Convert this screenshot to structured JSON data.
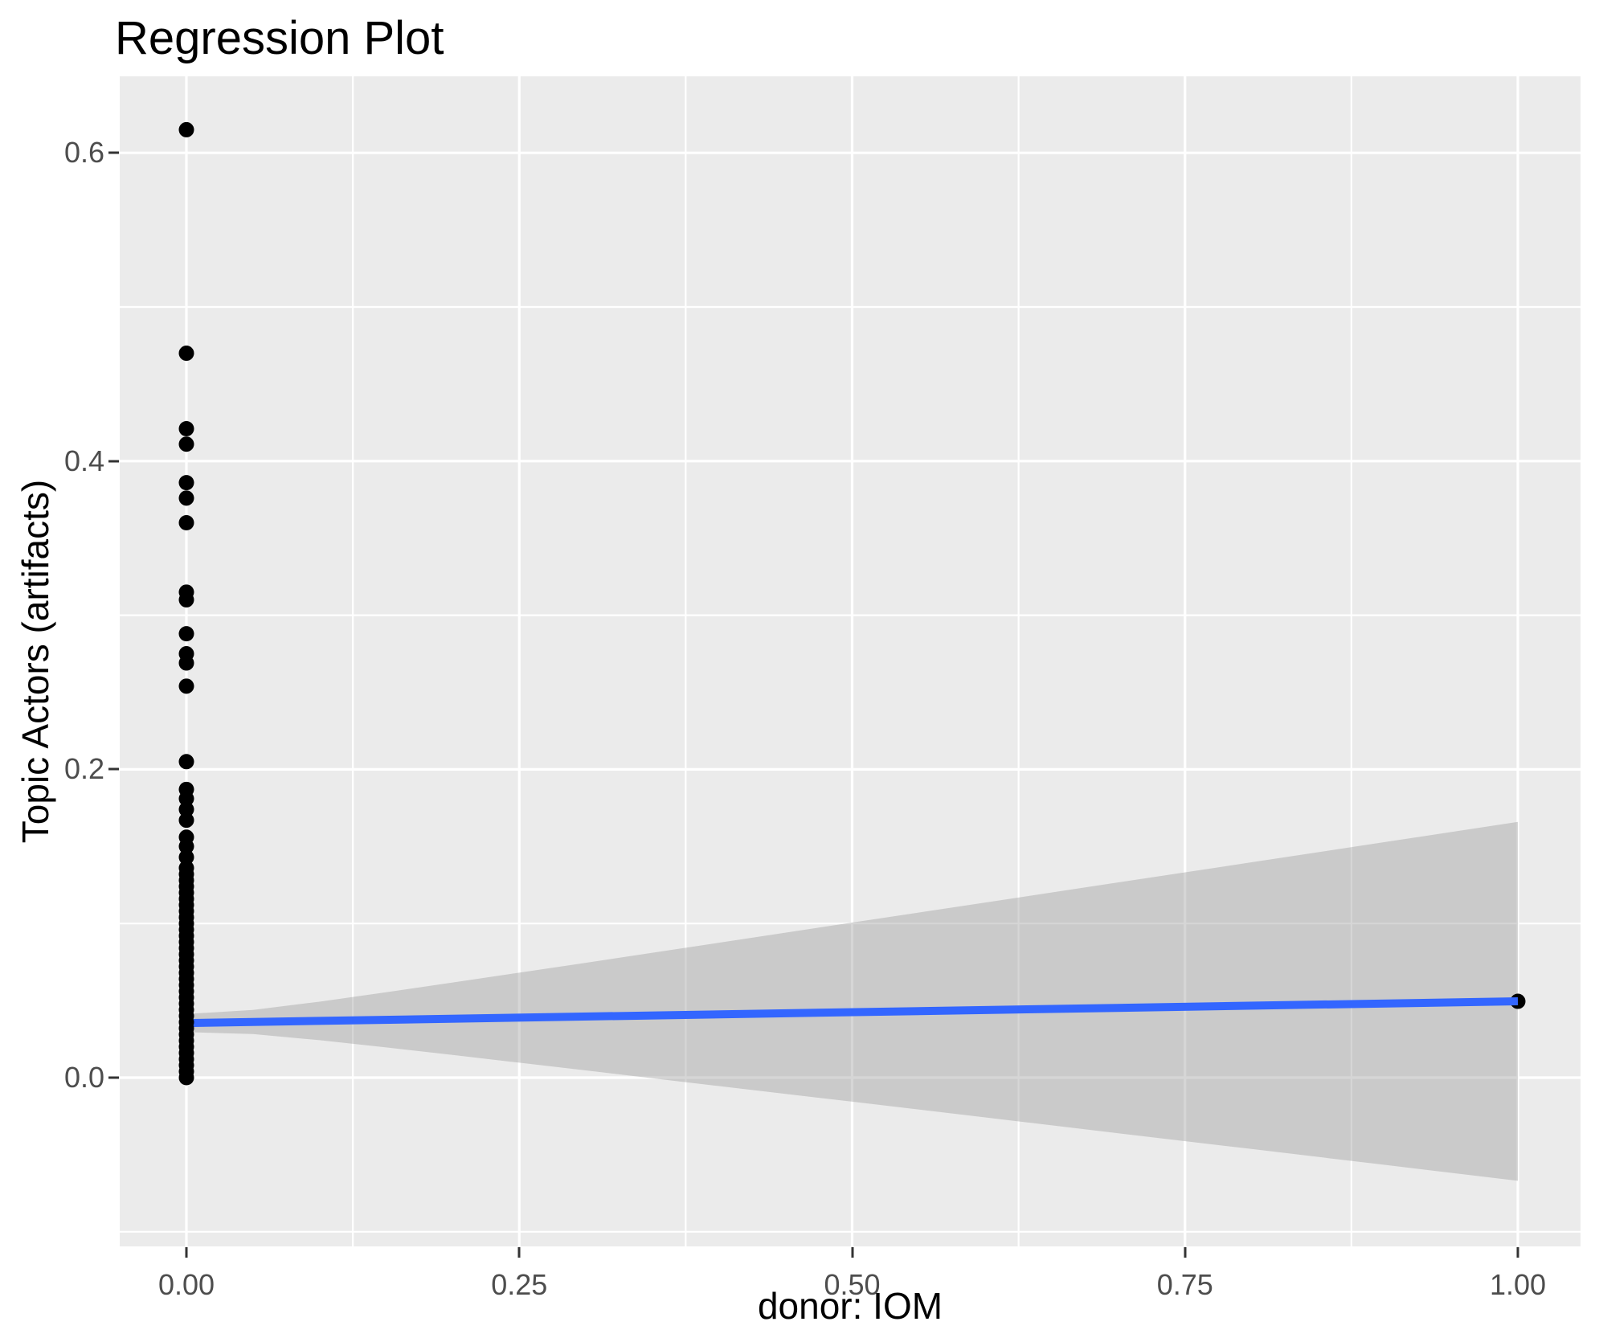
{
  "chart_data": {
    "type": "scatter",
    "title": "Regression Plot",
    "xlabel": "donor: IOM",
    "ylabel": "Topic Actors (artifacts)",
    "legend": "none",
    "grid": "white major and minor gridlines on gray panel",
    "xlim": [
      -0.0616,
      1.047
    ],
    "ylim": [
      -0.1095,
      0.648
    ],
    "x_ticks": {
      "values": [
        0,
        0.25,
        0.5,
        0.75,
        1.0
      ],
      "labels": [
        "0.00",
        "0.25",
        "0.50",
        "0.75",
        "1.00"
      ]
    },
    "y_ticks": {
      "values": [
        0,
        0.2,
        0.4,
        0.6
      ],
      "labels": [
        "0.0",
        "0.2",
        "0.4",
        "0.6"
      ]
    },
    "x_minor": [
      0.125,
      0.375,
      0.625,
      0.875
    ],
    "y_minor": [
      -0.1,
      0.1,
      0.3,
      0.5
    ],
    "series": [
      {
        "name": "observations at donor=0",
        "x": 0,
        "y": [
          0.615,
          0.47,
          0.421,
          0.411,
          0.386,
          0.376,
          0.36,
          0.315,
          0.31,
          0.288,
          0.275,
          0.269,
          0.254,
          0.205,
          0.187,
          0.181,
          0.174,
          0.167,
          0.156,
          0.15,
          0.143,
          0.136,
          0.132,
          0.128,
          0.124,
          0.12,
          0.116,
          0.112,
          0.108,
          0.104,
          0.1,
          0.096,
          0.092,
          0.088,
          0.084,
          0.08,
          0.076,
          0.072,
          0.068,
          0.064,
          0.06,
          0.056,
          0.052,
          0.048,
          0.044,
          0.04,
          0.036,
          0.032,
          0.028,
          0.024,
          0.02,
          0.016,
          0.012,
          0.008,
          0.004,
          0.0
        ]
      },
      {
        "name": "observation at donor=1",
        "x": 1,
        "y": [
          0.0495
        ]
      }
    ],
    "regression_line": {
      "x": [
        0,
        1
      ],
      "y": [
        0.0354,
        0.0495
      ]
    },
    "ci_band": {
      "x": [
        0.0,
        0.05,
        0.1,
        0.15,
        0.2,
        0.25,
        0.3,
        0.4,
        0.5,
        0.6,
        0.7,
        0.8,
        0.9,
        1.0
      ],
      "upper": [
        0.0413,
        0.0439,
        0.0493,
        0.0554,
        0.0617,
        0.0681,
        0.0745,
        0.0875,
        0.1006,
        0.1136,
        0.1267,
        0.1397,
        0.1528,
        0.1659
      ],
      "lower": [
        0.0295,
        0.0283,
        0.0243,
        0.0196,
        0.0147,
        0.0097,
        0.0047,
        -0.0055,
        -0.0156,
        -0.0258,
        -0.0361,
        -0.0463,
        -0.0566,
        -0.0669
      ]
    },
    "point_radius_px": 9.5,
    "colors": {
      "panel_bg": "#EBEBEB",
      "gridline": "#FFFFFF",
      "band_gray": "#999999",
      "band_alpha": 0.4,
      "line_blue": "#3366FF",
      "point": "#000000",
      "tick_label": "#4D4D4D",
      "tick_mark": "#333333",
      "text": "#000000"
    }
  }
}
